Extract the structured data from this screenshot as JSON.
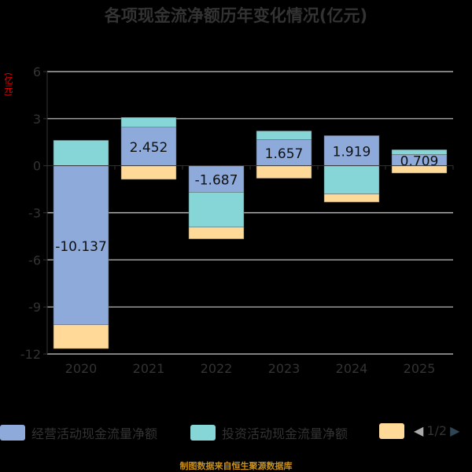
{
  "chart_data": {
    "type": "bar",
    "stacked": true,
    "title": "各项现金流净额历年变化情况(亿元)",
    "ylabel": "(亿元)",
    "ylim": [
      -12,
      6
    ],
    "yticks": [
      6,
      3,
      0,
      -3,
      -6,
      -9,
      -12
    ],
    "categories": [
      "2020",
      "2021",
      "2022",
      "2023",
      "2024",
      "2025"
    ],
    "series": [
      {
        "name": "经营活动现金流量净额",
        "color": "#8eaadb",
        "values": [
          -10.137,
          2.452,
          -1.687,
          1.657,
          1.919,
          0.709
        ],
        "labels": [
          "-10.137",
          "2.452",
          "-1.687",
          "1.657",
          "1.919",
          "0.709"
        ]
      },
      {
        "name": "投资活动现金流量净额",
        "color": "#86d6d8",
        "values": [
          1.62,
          0.63,
          -2.23,
          0.56,
          -1.8,
          0.31
        ]
      },
      {
        "name": "",
        "color": "#fed998",
        "values": [
          -1.52,
          -0.87,
          -0.75,
          -0.8,
          -0.52,
          -0.47
        ]
      }
    ],
    "grid": true,
    "legend_position": "bottom"
  },
  "legend": {
    "page": "1/2"
  },
  "footer": "制图数据来自恒生聚源数据库"
}
